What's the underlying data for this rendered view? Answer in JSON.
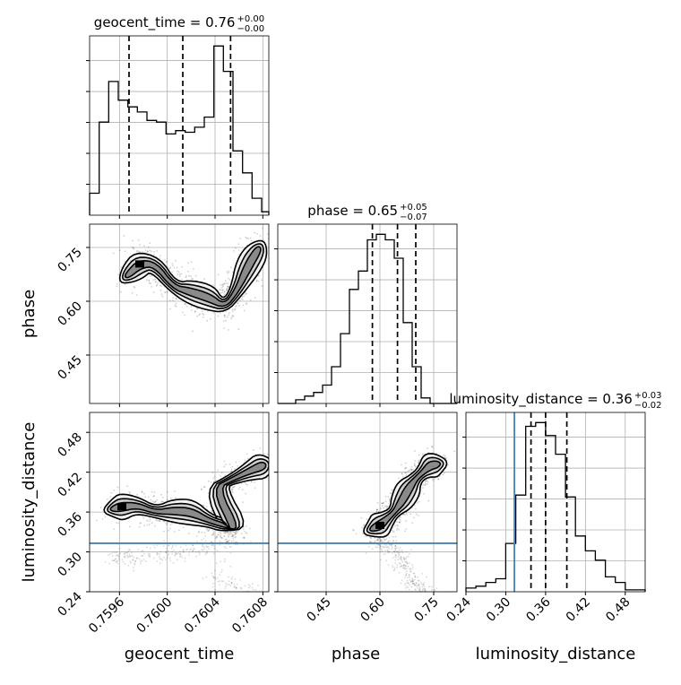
{
  "chart_data": {
    "type": "corner",
    "parameters": [
      "geocent_time",
      "phase",
      "luminosity_distance"
    ],
    "titles": {
      "geocent_time": {
        "label": "geocent_time",
        "value": "0.76",
        "plus": "+0.00",
        "minus": "−0.00"
      },
      "phase": {
        "label": "phase",
        "value": "0.65",
        "plus": "+0.05",
        "minus": "−0.07"
      },
      "luminosity_distance": {
        "label": "luminosity_distance",
        "value": "0.36",
        "plus": "+0.03",
        "minus": "−0.02"
      }
    },
    "axes": {
      "geocent_time": {
        "range": [
          0.75935,
          0.76085
        ],
        "ticks": [
          0.7596,
          0.76,
          0.7604,
          0.7608
        ],
        "tick_labels": [
          "0.7596",
          "0.7600",
          "0.7604",
          "0.7608"
        ]
      },
      "phase": {
        "range": [
          0.315,
          0.815
        ],
        "ticks": [
          0.45,
          0.6,
          0.75
        ],
        "tick_labels": [
          "0.45",
          "0.60",
          "0.75"
        ]
      },
      "luminosity_distance": {
        "range": [
          0.24,
          0.51
        ],
        "ticks": [
          0.24,
          0.3,
          0.36,
          0.42,
          0.48
        ],
        "tick_labels": [
          "0.24",
          "0.30",
          "0.36",
          "0.42",
          "0.48"
        ]
      }
    },
    "histograms": {
      "geocent_time": {
        "edges": [
          0.75935,
          0.75943,
          0.75951,
          0.75959,
          0.75967,
          0.75975,
          0.75983,
          0.75991,
          0.75999,
          0.76007,
          0.76015,
          0.76023,
          0.76031,
          0.76039,
          0.76047,
          0.76055,
          0.76063,
          0.76071,
          0.76079,
          0.76085
        ],
        "counts": [
          0.13,
          0.55,
          0.79,
          0.68,
          0.64,
          0.61,
          0.56,
          0.55,
          0.48,
          0.5,
          0.49,
          0.52,
          0.58,
          1.0,
          0.85,
          0.38,
          0.25,
          0.1,
          0.02
        ],
        "quantiles": [
          0.75968,
          0.76013,
          0.76053
        ]
      },
      "phase": {
        "edges": [
          0.315,
          0.34,
          0.365,
          0.39,
          0.415,
          0.44,
          0.465,
          0.49,
          0.515,
          0.54,
          0.565,
          0.59,
          0.615,
          0.64,
          0.665,
          0.69,
          0.715,
          0.74,
          0.765,
          0.79,
          0.815
        ],
        "counts": [
          0.0,
          0.0,
          0.02,
          0.04,
          0.06,
          0.1,
          0.2,
          0.38,
          0.62,
          0.72,
          0.89,
          0.92,
          0.89,
          0.79,
          0.44,
          0.2,
          0.03,
          0.0,
          0.0,
          0.0
        ],
        "quantiles": [
          0.579,
          0.649,
          0.7
        ]
      },
      "luminosity_distance": {
        "edges": [
          0.24,
          0.255,
          0.27,
          0.285,
          0.3,
          0.315,
          0.33,
          0.345,
          0.36,
          0.375,
          0.39,
          0.405,
          0.42,
          0.435,
          0.45,
          0.465,
          0.48,
          0.495,
          0.51
        ],
        "counts": [
          0.02,
          0.03,
          0.05,
          0.07,
          0.26,
          0.52,
          0.89,
          0.91,
          0.84,
          0.74,
          0.51,
          0.3,
          0.22,
          0.17,
          0.08,
          0.05,
          0.01,
          0.01
        ],
        "quantiles": [
          0.338,
          0.36,
          0.392
        ],
        "truth": 0.313
      }
    },
    "truths": {
      "luminosity_distance": 0.313
    },
    "joint": {
      "phase_vs_geocent_time": {
        "points": [
          [
            0.75967,
            0.673
          ],
          [
            0.75977,
            0.704
          ],
          [
            0.7599,
            0.703
          ],
          [
            0.76005,
            0.64
          ],
          [
            0.76018,
            0.628
          ],
          [
            0.76035,
            0.61
          ],
          [
            0.76048,
            0.585
          ],
          [
            0.76058,
            0.628
          ],
          [
            0.76068,
            0.7
          ],
          [
            0.76076,
            0.744
          ]
        ],
        "spread": [
          4e-05,
          0.02
        ]
      },
      "luminosity_distance_vs_geocent_time": {
        "points": [
          [
            0.75955,
            0.365
          ],
          [
            0.75962,
            0.368
          ],
          [
            0.75975,
            0.37
          ],
          [
            0.7599,
            0.36
          ],
          [
            0.76005,
            0.362
          ],
          [
            0.7602,
            0.36
          ],
          [
            0.76035,
            0.347
          ],
          [
            0.76048,
            0.34
          ],
          [
            0.76058,
            0.331
          ],
          [
            0.7604,
            0.396
          ],
          [
            0.76055,
            0.41
          ],
          [
            0.76068,
            0.421
          ],
          [
            0.7608,
            0.43
          ]
        ],
        "spread": [
          4e-05,
          0.008
        ]
      },
      "luminosity_distance_vs_phase": {
        "points": [
          [
            0.58,
            0.335
          ],
          [
            0.6,
            0.34
          ],
          [
            0.62,
            0.35
          ],
          [
            0.64,
            0.36
          ],
          [
            0.66,
            0.375
          ],
          [
            0.68,
            0.395
          ],
          [
            0.7,
            0.41
          ],
          [
            0.72,
            0.42
          ],
          [
            0.74,
            0.43
          ],
          [
            0.76,
            0.432
          ]
        ],
        "spread": [
          0.015,
          0.007
        ]
      }
    },
    "grid": true,
    "contours": {
      "levels": 3,
      "style": "black outline with grayscale density fill"
    }
  }
}
